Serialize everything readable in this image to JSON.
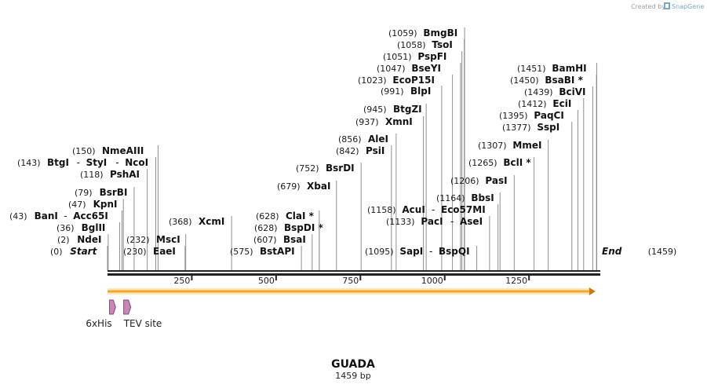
{
  "header": {
    "credit": "Created by",
    "brand": "SnapGene"
  },
  "map": {
    "name": "GUADA",
    "length_label": "1459 bp",
    "length_bp": 1459
  },
  "colors": {
    "backbone": "#222222",
    "orf_fill": "#f0a830",
    "orf_edge": "#c77a10",
    "feature_fill": "#c987b8",
    "feature_edge": "#7d4b74",
    "leader": "#8f8f8f"
  },
  "scale": {
    "ticks": [
      {
        "bp": 250,
        "label": "250"
      },
      {
        "bp": 500,
        "label": "500"
      },
      {
        "bp": 750,
        "label": "750"
      },
      {
        "bp": 1000,
        "label": "1000"
      },
      {
        "bp": 1250,
        "label": "1250"
      }
    ]
  },
  "features": [
    {
      "label": "6xHis",
      "start": 6,
      "end": 24
    },
    {
      "label": "TEV site",
      "start": 48,
      "end": 69
    }
  ],
  "orf": {
    "start": 0,
    "end": 1447
  },
  "sites": [
    {
      "pos": "(0)",
      "name": "Start",
      "bp": 0,
      "italic": true
    },
    {
      "pos": "(2)",
      "name": "NdeI",
      "bp": 2
    },
    {
      "pos": "(36)",
      "name": "BglII",
      "bp": 36
    },
    {
      "pos": "(43)",
      "name": "BanI",
      "partner": "Acc65I",
      "bp": 43
    },
    {
      "pos": "(47)",
      "name": "KpnI",
      "bp": 47
    },
    {
      "pos": "(79)",
      "name": "BsrBI",
      "bp": 79
    },
    {
      "pos": "(118)",
      "name": "PshAI",
      "bp": 118
    },
    {
      "pos": "(143)",
      "name": "BtgI",
      "partner": "StyI",
      "partner2": "NcoI",
      "bp": 143
    },
    {
      "pos": "(150)",
      "name": "NmeAIII",
      "bp": 150
    },
    {
      "pos": "(230)",
      "name": "EaeI",
      "bp": 230
    },
    {
      "pos": "(232)",
      "name": "MscI",
      "bp": 232
    },
    {
      "pos": "(368)",
      "name": "XcmI",
      "bp": 368
    },
    {
      "pos": "(575)",
      "name": "BstAPI",
      "bp": 575
    },
    {
      "pos": "(607)",
      "name": "BsaI",
      "bp": 607
    },
    {
      "pos": "(628)",
      "name": "BspDI *",
      "bp": 628
    },
    {
      "pos": "(628)",
      "name": "ClaI *",
      "bp": 628
    },
    {
      "pos": "(679)",
      "name": "XbaI",
      "bp": 679
    },
    {
      "pos": "(752)",
      "name": "BsrDI",
      "bp": 752
    },
    {
      "pos": "(842)",
      "name": "PsiI",
      "bp": 842
    },
    {
      "pos": "(856)",
      "name": "AleI",
      "bp": 856
    },
    {
      "pos": "(937)",
      "name": "XmnI",
      "bp": 937
    },
    {
      "pos": "(945)",
      "name": "BtgZI",
      "bp": 945
    },
    {
      "pos": "(991)",
      "name": "BlpI",
      "bp": 991
    },
    {
      "pos": "(1023)",
      "name": "EcoP15I",
      "bp": 1023
    },
    {
      "pos": "(1047)",
      "name": "BseYI",
      "bp": 1047
    },
    {
      "pos": "(1051)",
      "name": "PspFI",
      "bp": 1051
    },
    {
      "pos": "(1058)",
      "name": "TsoI",
      "bp": 1058
    },
    {
      "pos": "(1059)",
      "name": "BmgBI",
      "bp": 1059
    },
    {
      "pos": "(1095)",
      "name": "SapI",
      "partner": "BspQI",
      "bp": 1095
    },
    {
      "pos": "(1133)",
      "name": "PacI",
      "partner": "AseI",
      "bp": 1133
    },
    {
      "pos": "(1158)",
      "name": "AcuI",
      "partner": "Eco57MI",
      "bp": 1158
    },
    {
      "pos": "(1164)",
      "name": "BbsI",
      "bp": 1164
    },
    {
      "pos": "(1206)",
      "name": "PasI",
      "bp": 1206
    },
    {
      "pos": "(1265)",
      "name": "BclI *",
      "bp": 1265
    },
    {
      "pos": "(1307)",
      "name": "MmeI",
      "bp": 1307
    },
    {
      "pos": "(1377)",
      "name": "SspI",
      "bp": 1377
    },
    {
      "pos": "(1395)",
      "name": "PaqCI",
      "bp": 1395
    },
    {
      "pos": "(1412)",
      "name": "EciI",
      "bp": 1412
    },
    {
      "pos": "(1439)",
      "name": "BciVI",
      "bp": 1439
    },
    {
      "pos": "(1450)",
      "name": "BsaBI *",
      "bp": 1450
    },
    {
      "pos": "(1451)",
      "name": "BamHI",
      "bp": 1451
    },
    {
      "pos": "(1459)",
      "name": "End",
      "bp": 1459,
      "italic": true
    }
  ]
}
